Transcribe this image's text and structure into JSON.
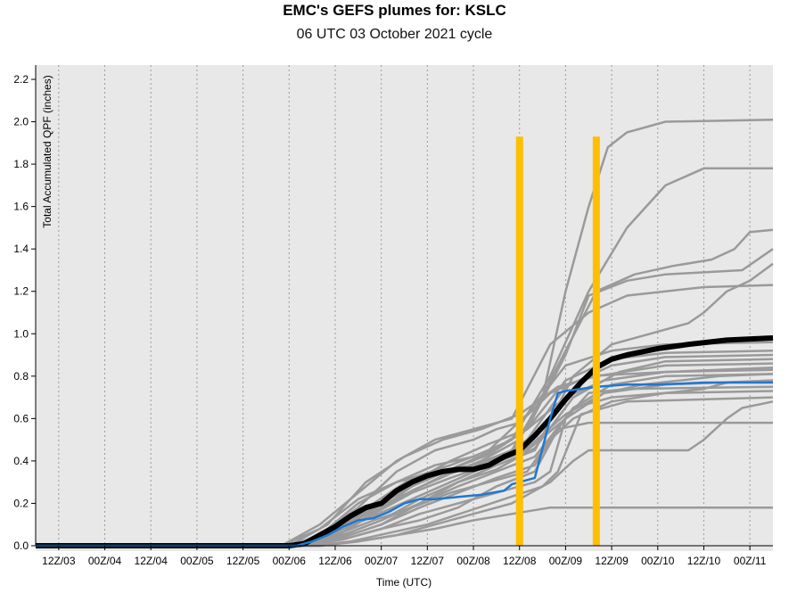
{
  "title": "EMC's GEFS plumes for: KSLC",
  "subtitle": "06 UTC 03 October 2021 cycle",
  "chart_data": {
    "type": "line",
    "title": "EMC's GEFS plumes for: KSLC",
    "subtitle": "06 UTC 03 October 2021 cycle",
    "xlabel": "Time (UTC)",
    "ylabel": "Total Accumulated QPF (inches)",
    "x_unit": "forecast hour",
    "xlim": [
      6,
      198
    ],
    "ylim": [
      0,
      2.25
    ],
    "yticks": [
      0.0,
      0.2,
      0.4,
      0.6,
      0.8,
      1.0,
      1.2,
      1.4,
      1.6,
      1.8,
      2.0,
      2.2
    ],
    "xticks": [
      {
        "h": 12,
        "label": "12Z/03"
      },
      {
        "h": 24,
        "label": "00Z/04"
      },
      {
        "h": 36,
        "label": "12Z/04"
      },
      {
        "h": 48,
        "label": "00Z/05"
      },
      {
        "h": 60,
        "label": "12Z/05"
      },
      {
        "h": 72,
        "label": "00Z/06"
      },
      {
        "h": 84,
        "label": "12Z/06"
      },
      {
        "h": 96,
        "label": "00Z/07"
      },
      {
        "h": 108,
        "label": "12Z/07"
      },
      {
        "h": 120,
        "label": "00Z/08"
      },
      {
        "h": 132,
        "label": "12Z/08"
      },
      {
        "h": 144,
        "label": "00Z/09"
      },
      {
        "h": 156,
        "label": "12Z/09"
      },
      {
        "h": 168,
        "label": "00Z/10"
      },
      {
        "h": 180,
        "label": "12Z/10"
      },
      {
        "h": 192,
        "label": "00Z/11"
      }
    ],
    "grid": "vertical dotted",
    "colors": {
      "background": "#e8e8e8",
      "members": "#9a9a9a",
      "mean": "#000000",
      "control": "#1f78d1",
      "markers": "#ffbf00"
    },
    "vertical_markers": [
      {
        "h": 132,
        "top": 1.93
      },
      {
        "h": 152,
        "top": 1.93
      }
    ],
    "series": [
      {
        "role": "mean",
        "x": [
          6,
          72,
          76,
          80,
          84,
          88,
          92,
          96,
          100,
          104,
          108,
          112,
          116,
          120,
          124,
          128,
          132,
          136,
          140,
          144,
          148,
          152,
          156,
          160,
          168,
          176,
          186,
          198
        ],
        "y": [
          0,
          0,
          0.01,
          0.05,
          0.09,
          0.14,
          0.18,
          0.2,
          0.26,
          0.3,
          0.33,
          0.35,
          0.36,
          0.36,
          0.38,
          0.42,
          0.45,
          0.52,
          0.6,
          0.69,
          0.77,
          0.84,
          0.88,
          0.9,
          0.93,
          0.95,
          0.97,
          0.98
        ]
      },
      {
        "role": "control",
        "x": [
          6,
          74,
          78,
          82,
          86,
          90,
          94,
          98,
          102,
          106,
          110,
          116,
          122,
          128,
          130,
          136,
          140,
          142,
          144,
          148,
          152,
          160,
          168,
          180,
          198
        ],
        "y": [
          0,
          0,
          0.02,
          0.05,
          0.09,
          0.12,
          0.13,
          0.16,
          0.2,
          0.22,
          0.22,
          0.23,
          0.24,
          0.26,
          0.29,
          0.32,
          0.6,
          0.72,
          0.73,
          0.74,
          0.75,
          0.76,
          0.76,
          0.77,
          0.77
        ]
      },
      {
        "role": "member",
        "x": [
          6,
          72,
          80,
          90,
          100,
          110,
          120,
          130,
          138,
          144,
          150,
          155,
          160,
          170,
          198
        ],
        "y": [
          0,
          0,
          0.05,
          0.2,
          0.3,
          0.35,
          0.38,
          0.45,
          0.7,
          1.2,
          1.6,
          1.88,
          1.95,
          2.0,
          2.01
        ]
      },
      {
        "role": "member",
        "x": [
          6,
          70,
          80,
          90,
          100,
          110,
          120,
          130,
          140,
          150,
          160,
          170,
          180,
          198
        ],
        "y": [
          0,
          0,
          0.08,
          0.22,
          0.3,
          0.38,
          0.42,
          0.5,
          0.8,
          1.2,
          1.5,
          1.7,
          1.78,
          1.78
        ]
      },
      {
        "role": "member",
        "x": [
          6,
          72,
          82,
          92,
          102,
          112,
          122,
          132,
          142,
          152,
          162,
          172,
          182,
          188,
          192,
          198
        ],
        "y": [
          0,
          0,
          0.06,
          0.16,
          0.24,
          0.33,
          0.4,
          0.5,
          0.85,
          1.2,
          1.28,
          1.32,
          1.35,
          1.4,
          1.48,
          1.49
        ]
      },
      {
        "role": "member",
        "x": [
          6,
          74,
          84,
          94,
          104,
          114,
          124,
          134,
          144,
          150,
          160,
          170,
          190,
          198
        ],
        "y": [
          0,
          0,
          0.04,
          0.15,
          0.28,
          0.36,
          0.44,
          0.55,
          0.9,
          1.18,
          1.25,
          1.28,
          1.3,
          1.4
        ]
      },
      {
        "role": "member",
        "x": [
          6,
          70,
          80,
          90,
          100,
          110,
          120,
          130,
          140,
          150,
          160,
          170,
          180,
          198
        ],
        "y": [
          0,
          0,
          0.1,
          0.25,
          0.4,
          0.5,
          0.55,
          0.6,
          0.95,
          1.1,
          1.18,
          1.2,
          1.22,
          1.23
        ]
      },
      {
        "role": "member",
        "x": [
          6,
          76,
          86,
          96,
          106,
          116,
          126,
          136,
          146,
          156,
          166,
          176,
          180,
          186,
          192,
          198
        ],
        "y": [
          0,
          0,
          0.05,
          0.12,
          0.2,
          0.3,
          0.38,
          0.45,
          0.8,
          0.95,
          1.0,
          1.05,
          1.1,
          1.2,
          1.25,
          1.33
        ]
      },
      {
        "role": "member",
        "x": [
          6,
          74,
          84,
          94,
          104,
          114,
          124,
          134,
          144,
          156,
          170,
          198
        ],
        "y": [
          0,
          0,
          0.1,
          0.2,
          0.32,
          0.38,
          0.45,
          0.62,
          0.85,
          0.92,
          0.95,
          0.96
        ]
      },
      {
        "role": "member",
        "x": [
          6,
          74,
          84,
          94,
          104,
          114,
          124,
          134,
          144,
          156,
          170,
          198
        ],
        "y": [
          0,
          0,
          0.08,
          0.18,
          0.28,
          0.36,
          0.43,
          0.55,
          0.78,
          0.88,
          0.91,
          0.92
        ]
      },
      {
        "role": "member",
        "x": [
          6,
          74,
          84,
          94,
          104,
          114,
          124,
          134,
          144,
          156,
          170,
          198
        ],
        "y": [
          0,
          0,
          0.06,
          0.15,
          0.25,
          0.32,
          0.38,
          0.5,
          0.75,
          0.85,
          0.89,
          0.9
        ]
      },
      {
        "role": "member",
        "x": [
          6,
          76,
          86,
          96,
          106,
          116,
          126,
          136,
          146,
          158,
          170,
          198
        ],
        "y": [
          0,
          0,
          0.05,
          0.12,
          0.22,
          0.3,
          0.36,
          0.46,
          0.7,
          0.82,
          0.87,
          0.88
        ]
      },
      {
        "role": "member",
        "x": [
          6,
          72,
          82,
          92,
          102,
          112,
          122,
          132,
          142,
          152,
          170,
          198
        ],
        "y": [
          0,
          0,
          0.1,
          0.3,
          0.42,
          0.5,
          0.55,
          0.62,
          0.75,
          0.8,
          0.85,
          0.86
        ]
      },
      {
        "role": "member",
        "x": [
          6,
          74,
          84,
          94,
          104,
          114,
          124,
          134,
          144,
          154,
          170,
          198
        ],
        "y": [
          0,
          0,
          0.07,
          0.17,
          0.3,
          0.4,
          0.48,
          0.55,
          0.7,
          0.78,
          0.82,
          0.84
        ]
      },
      {
        "role": "member",
        "x": [
          6,
          76,
          86,
          96,
          106,
          116,
          126,
          136,
          146,
          156,
          170,
          198
        ],
        "y": [
          0,
          0,
          0.04,
          0.1,
          0.2,
          0.28,
          0.35,
          0.42,
          0.65,
          0.76,
          0.8,
          0.81
        ]
      },
      {
        "role": "member",
        "x": [
          6,
          74,
          84,
          94,
          104,
          114,
          124,
          134,
          144,
          154,
          170,
          198
        ],
        "y": [
          0,
          0,
          0.06,
          0.14,
          0.22,
          0.3,
          0.38,
          0.45,
          0.6,
          0.72,
          0.76,
          0.78
        ]
      },
      {
        "role": "member",
        "x": [
          6,
          76,
          86,
          96,
          106,
          116,
          126,
          136,
          140,
          144,
          150,
          160,
          198
        ],
        "y": [
          0,
          0,
          0.03,
          0.08,
          0.15,
          0.2,
          0.25,
          0.3,
          0.35,
          0.6,
          0.72,
          0.74,
          0.75
        ]
      },
      {
        "role": "member",
        "x": [
          6,
          74,
          84,
          94,
          104,
          114,
          124,
          134,
          140,
          146,
          156,
          170,
          198
        ],
        "y": [
          0,
          0,
          0.05,
          0.12,
          0.18,
          0.25,
          0.3,
          0.35,
          0.5,
          0.65,
          0.7,
          0.72,
          0.73
        ]
      },
      {
        "role": "member",
        "x": [
          6,
          78,
          88,
          98,
          108,
          118,
          128,
          138,
          142,
          148,
          160,
          198
        ],
        "y": [
          0,
          0,
          0.02,
          0.06,
          0.1,
          0.16,
          0.22,
          0.28,
          0.35,
          0.62,
          0.68,
          0.7
        ]
      },
      {
        "role": "member",
        "x": [
          6,
          80,
          90,
          100,
          110,
          120,
          130,
          140,
          146,
          150,
          160,
          176,
          180,
          186,
          190,
          198
        ],
        "y": [
          0,
          0,
          0.02,
          0.05,
          0.1,
          0.15,
          0.2,
          0.3,
          0.4,
          0.45,
          0.45,
          0.45,
          0.5,
          0.6,
          0.65,
          0.68
        ]
      },
      {
        "role": "member",
        "x": [
          6,
          76,
          86,
          96,
          106,
          116,
          126,
          136,
          142,
          150,
          170,
          180,
          198
        ],
        "y": [
          0,
          0,
          0.03,
          0.08,
          0.12,
          0.18,
          0.28,
          0.35,
          0.55,
          0.58,
          0.58,
          0.58,
          0.58
        ]
      },
      {
        "role": "member",
        "x": [
          6,
          80,
          90,
          100,
          110,
          120,
          130,
          140,
          150,
          160,
          198
        ],
        "y": [
          0,
          0,
          0.02,
          0.05,
          0.08,
          0.12,
          0.15,
          0.18,
          0.18,
          0.18,
          0.18
        ]
      },
      {
        "role": "member",
        "x": [
          6,
          76,
          86,
          96,
          106,
          116,
          126,
          136,
          140,
          146,
          156,
          170,
          180,
          186,
          198
        ],
        "y": [
          0,
          0,
          0.04,
          0.1,
          0.18,
          0.25,
          0.32,
          0.38,
          0.5,
          0.6,
          0.68,
          0.72,
          0.74,
          0.77,
          0.78
        ]
      },
      {
        "role": "member",
        "x": [
          6,
          72,
          80,
          90,
          100,
          110,
          120,
          126,
          132,
          140,
          150,
          170,
          198
        ],
        "y": [
          0,
          0,
          0.05,
          0.18,
          0.35,
          0.45,
          0.5,
          0.55,
          0.58,
          0.72,
          0.8,
          0.82,
          0.83
        ]
      },
      {
        "role": "member",
        "x": [
          6,
          74,
          84,
          94,
          104,
          114,
          124,
          134,
          144,
          154,
          164,
          174,
          184,
          198
        ],
        "y": [
          0,
          0,
          0.08,
          0.16,
          0.26,
          0.34,
          0.4,
          0.46,
          0.62,
          0.72,
          0.76,
          0.78,
          0.8,
          0.81
        ]
      }
    ]
  }
}
